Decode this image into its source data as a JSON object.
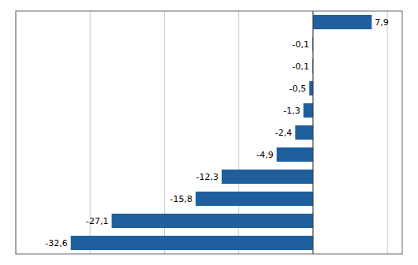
{
  "chart_data": {
    "type": "bar",
    "orientation": "horizontal",
    "categories": [
      null,
      null,
      null,
      null,
      null,
      null,
      null,
      null,
      null,
      null,
      null
    ],
    "values": [
      7.9,
      -0.1,
      -0.1,
      -0.5,
      -1.3,
      -2.4,
      -4.9,
      -12.3,
      -15.8,
      -27.1,
      -32.6
    ],
    "value_labels": [
      "7,9",
      "-0,1",
      "-0,1",
      "-0,5",
      "-1,3",
      "-2,4",
      "-4,9",
      "-12,3",
      "-15,8",
      "-27,1",
      "-32,6"
    ],
    "data_labels": true,
    "color": "#1F5F9E",
    "xlim": [
      -40,
      12
    ],
    "xticks": [
      -40,
      -30,
      -20,
      -10,
      0,
      10
    ],
    "grid": true,
    "tick_labels": false
  }
}
